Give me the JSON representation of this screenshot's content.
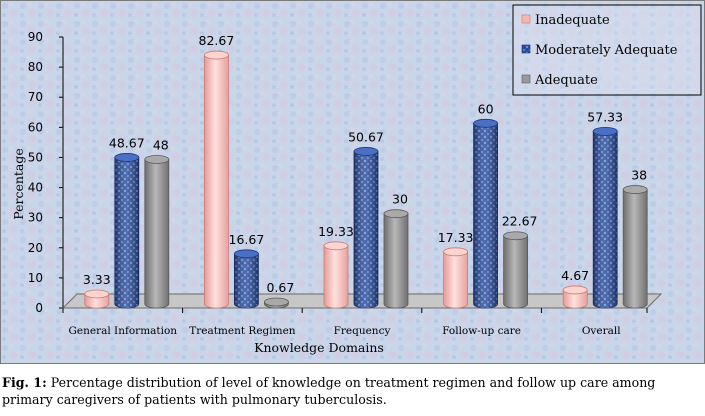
{
  "chart_data": {
    "type": "bar",
    "title": "",
    "xlabel": "Knowledge Domains",
    "ylabel": "Percentage",
    "ylim": [
      0,
      90
    ],
    "yticks": [
      0,
      10,
      20,
      30,
      40,
      50,
      60,
      70,
      80,
      90
    ],
    "grid": false,
    "legend_position": "top-right",
    "categories": [
      "General Information",
      "Treatment Regimen",
      "Frequency",
      "Follow-up care",
      "Overall"
    ],
    "series": [
      {
        "name": "Inadequate",
        "color": "#f4b6b2",
        "values": [
          3.33,
          82.67,
          19.33,
          17.33,
          4.67
        ],
        "labels": [
          "3.33",
          "82.67",
          "19.33",
          "17.33",
          "4.67"
        ]
      },
      {
        "name": "Moderately Adequate",
        "color": "#2f55a8",
        "values": [
          48.67,
          16.67,
          50.67,
          60,
          57.33
        ],
        "labels": [
          "48.67",
          "16.67",
          "50.67",
          "60",
          "57.33"
        ]
      },
      {
        "name": "Adequate",
        "color": "#8c8c8c",
        "values": [
          48,
          0.67,
          30,
          22.67,
          38
        ],
        "labels": [
          "48",
          "0.67",
          "30",
          "22.67",
          "38"
        ]
      }
    ]
  },
  "caption": {
    "label": "Fig. 1:",
    "text": " Percentage distribution of level of knowledge on treatment regimen and follow up care among primary caregivers of patients with pulmonary tuberculosis."
  }
}
